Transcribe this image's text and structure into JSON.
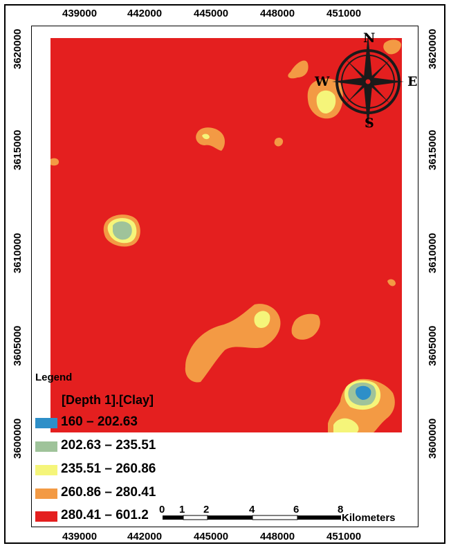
{
  "map": {
    "colors": {
      "c1": "#2e8fc8",
      "c2": "#9fc39a",
      "c3": "#f5f57a",
      "c4": "#f39a44",
      "c5": "#e41f1f"
    }
  },
  "axes": {
    "x_ticks": [
      "439000",
      "442000",
      "445000",
      "448000",
      "451000"
    ],
    "y_ticks": [
      "3620000",
      "3615000",
      "3610000",
      "3605000",
      "3600000"
    ]
  },
  "legend": {
    "title": "Legend",
    "layer": "[Depth 1].[Clay]",
    "classes": [
      {
        "label": "160 – 202.63",
        "color": "#2e8fc8"
      },
      {
        "label": "202.63 – 235.51",
        "color": "#9fc39a"
      },
      {
        "label": "235.51 – 260.86",
        "color": "#f5f57a"
      },
      {
        "label": "260.86 – 280.41",
        "color": "#f39a44"
      },
      {
        "label": "280.41 – 601.2",
        "color": "#e41f1f"
      }
    ]
  },
  "scale_bar": {
    "labels": [
      "0",
      "1",
      "2",
      "4",
      "6",
      "8"
    ],
    "unit": "Kilometers"
  },
  "north_arrow": {
    "n": "N",
    "s": "S",
    "e": "E",
    "w": "W"
  }
}
